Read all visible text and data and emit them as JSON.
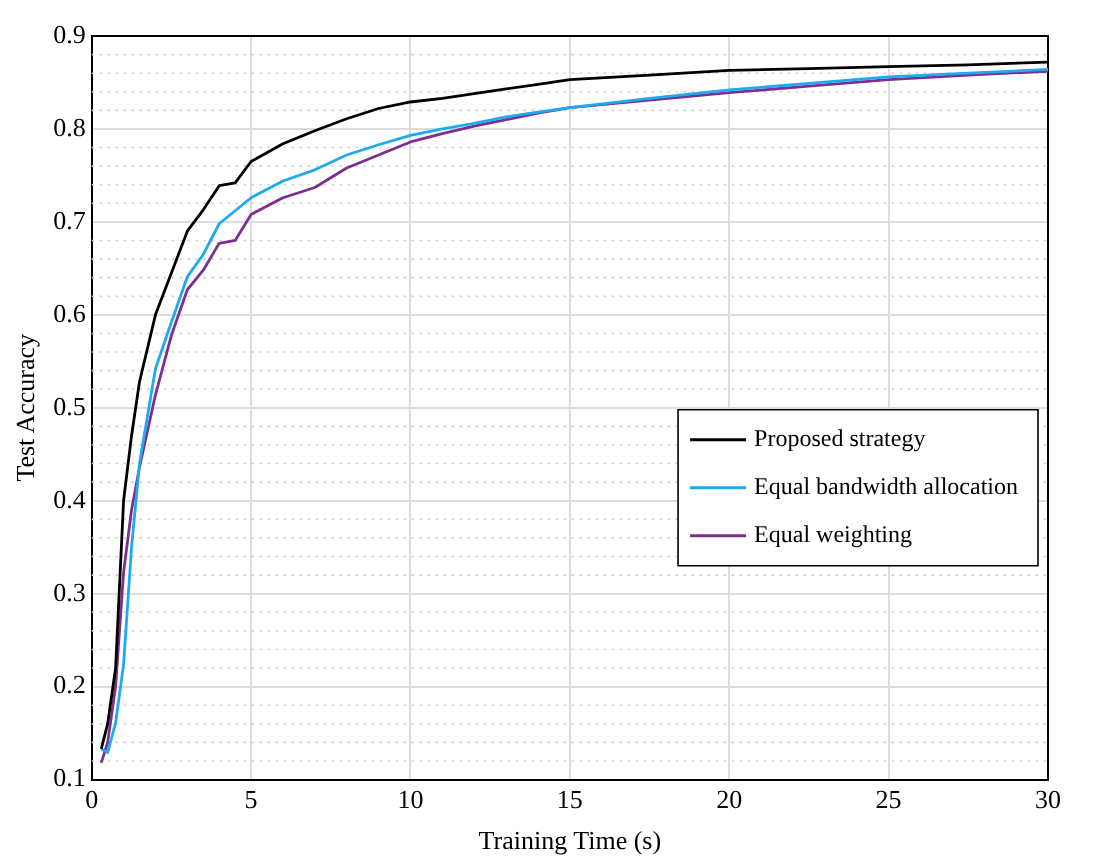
{
  "chart_data": {
    "type": "line",
    "xlabel": "Training Time (s)",
    "ylabel": "Test Accuracy",
    "x": [
      0.3,
      0.5,
      0.75,
      1,
      1.25,
      1.5,
      2,
      2.5,
      3,
      3.5,
      4,
      4.5,
      5,
      6,
      7,
      8,
      9,
      10,
      11,
      12,
      13,
      14,
      15,
      17.5,
      20,
      22.5,
      25,
      27.5,
      30
    ],
    "series": [
      {
        "name": "Proposed strategy",
        "color": "#000000",
        "values": [
          0.133,
          0.16,
          0.22,
          0.4,
          0.47,
          0.528,
          0.6,
          0.645,
          0.69,
          0.713,
          0.739,
          0.742,
          0.765,
          0.784,
          0.798,
          0.811,
          0.822,
          0.829,
          0.833,
          0.838,
          0.843,
          0.848,
          0.853,
          0.858,
          0.863,
          0.865,
          0.867,
          0.869,
          0.872
        ]
      },
      {
        "name": "Equal bandwidth allocation",
        "color": "#1eaaf0",
        "values": [
          0.133,
          0.129,
          0.161,
          0.224,
          0.35,
          0.44,
          0.542,
          0.592,
          0.641,
          0.665,
          0.698,
          0.712,
          0.726,
          0.744,
          0.756,
          0.772,
          0.783,
          0.793,
          0.8,
          0.806,
          0.813,
          0.818,
          0.823,
          0.833,
          0.842,
          0.849,
          0.856,
          0.86,
          0.864
        ]
      },
      {
        "name": "Equal weighting",
        "color": "#7e2f8e",
        "values": [
          0.118,
          0.14,
          0.2,
          0.323,
          0.39,
          0.436,
          0.514,
          0.578,
          0.627,
          0.648,
          0.677,
          0.68,
          0.708,
          0.726,
          0.737,
          0.758,
          0.772,
          0.786,
          0.795,
          0.803,
          0.81,
          0.817,
          0.823,
          0.831,
          0.839,
          0.846,
          0.853,
          0.858,
          0.862
        ]
      }
    ],
    "xlim": [
      0,
      30
    ],
    "xticks": [
      0,
      5,
      10,
      15,
      20,
      25,
      30
    ],
    "ylim": [
      0.1,
      0.9
    ],
    "yticks": [
      0.1,
      0.2,
      0.3,
      0.4,
      0.5,
      0.6,
      0.7,
      0.8,
      0.9
    ],
    "grid": true,
    "legend": "right",
    "marker": "none",
    "line_style": "solid"
  }
}
